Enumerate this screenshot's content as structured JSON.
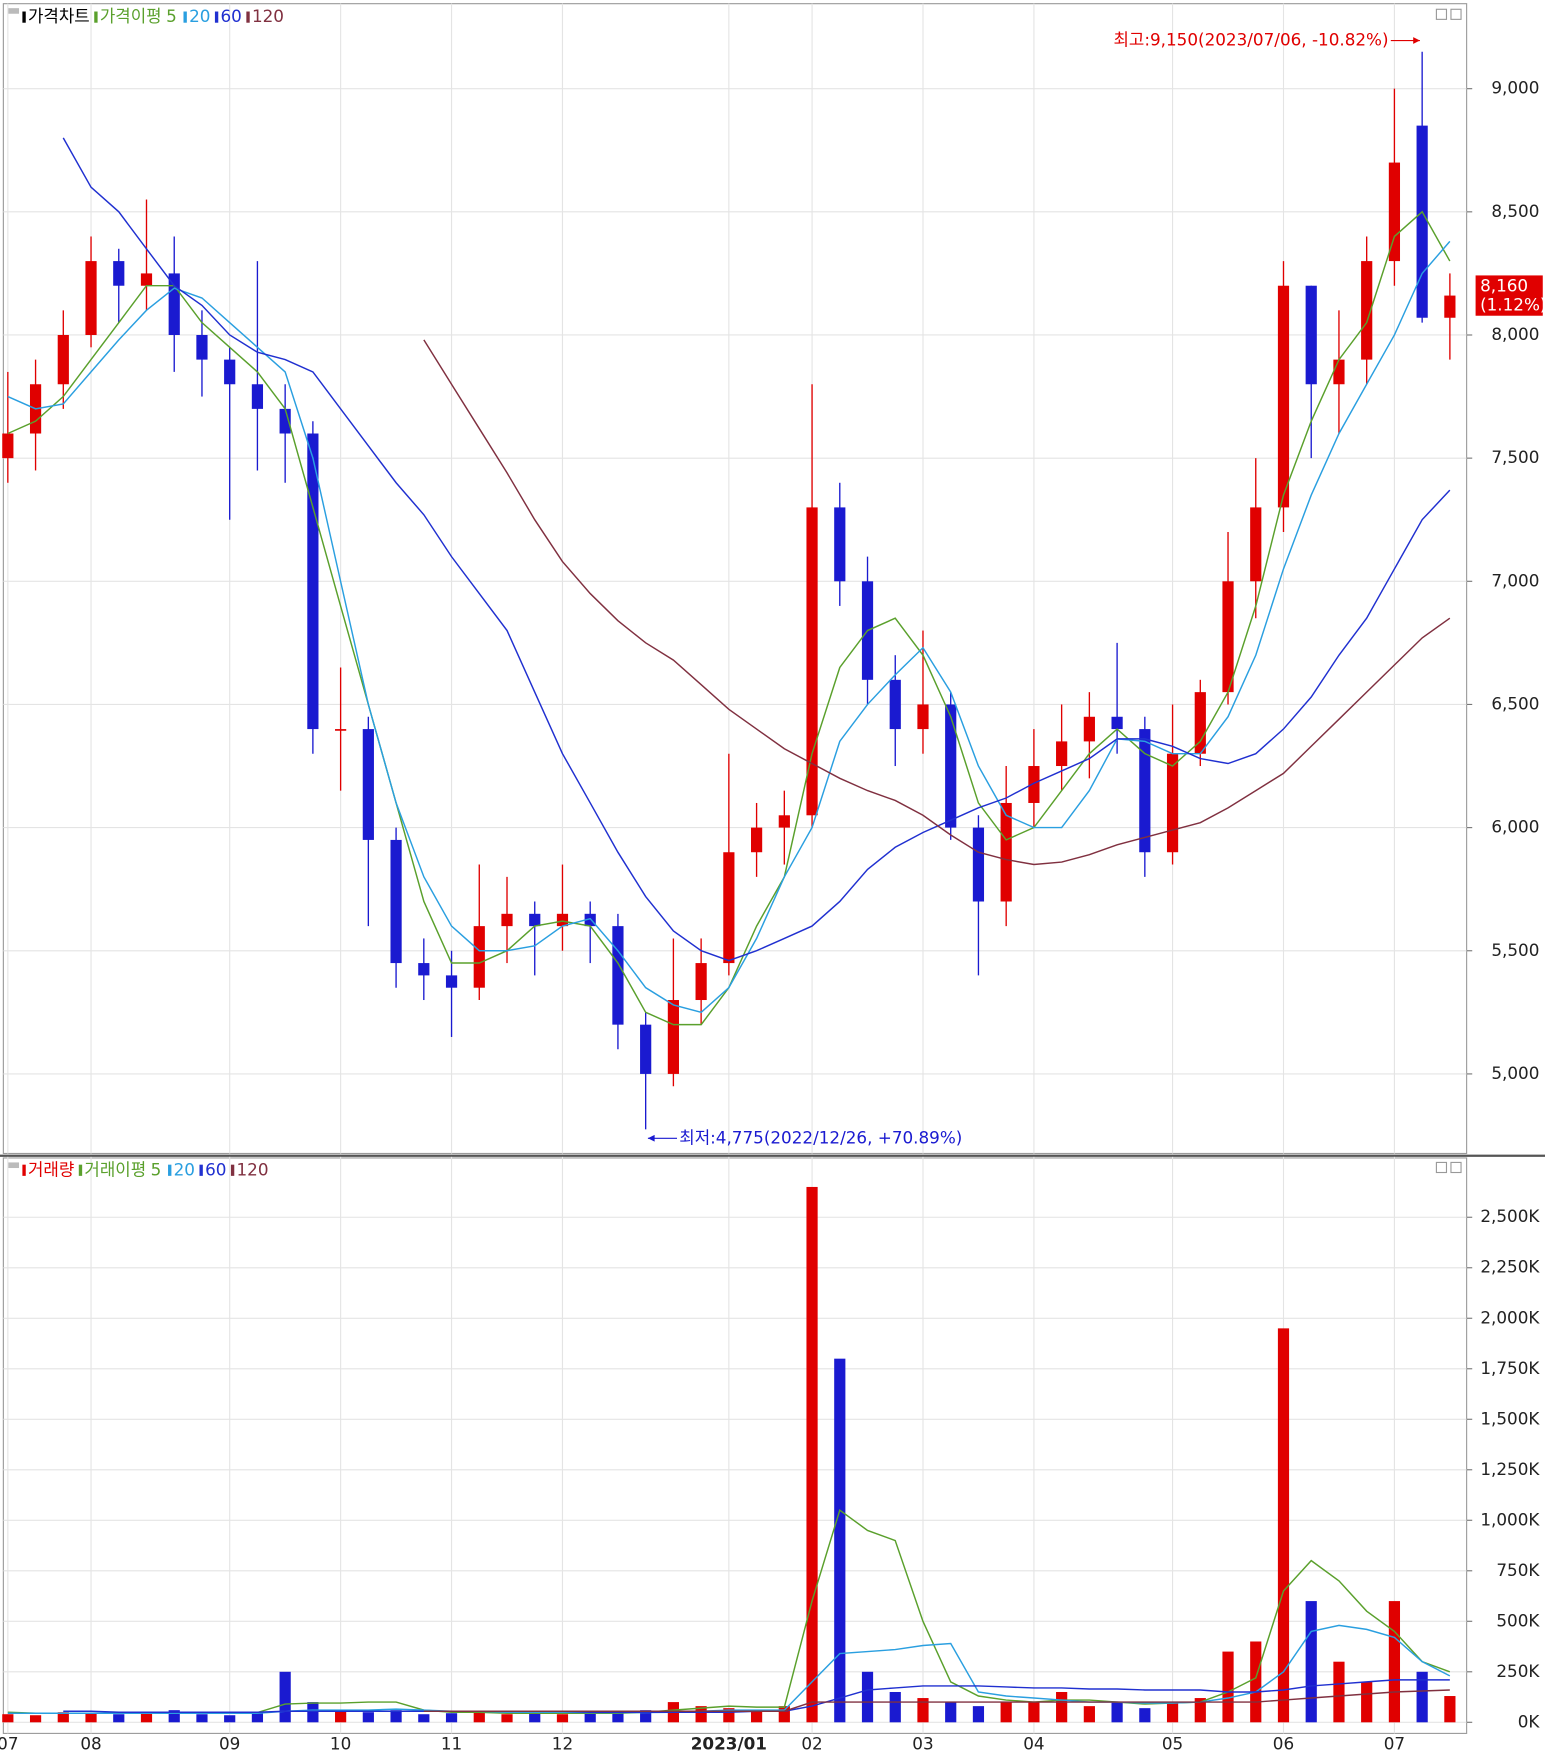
{
  "chart_data": [
    {
      "type": "candlestick",
      "legend_title": "가격차트",
      "ma_label": "가격이평",
      "up_color": "#e00000",
      "down_color": "#1a1ad0",
      "ylim": [
        4677,
        9336
      ],
      "yticks": [
        {
          "value": 5000,
          "label": "5,000"
        },
        {
          "value": 5500,
          "label": "5,500"
        },
        {
          "value": 6000,
          "label": "6,000"
        },
        {
          "value": 6500,
          "label": "6,500"
        },
        {
          "value": 7000,
          "label": "7,000"
        },
        {
          "value": 7500,
          "label": "7,500"
        },
        {
          "value": 8000,
          "label": "8,000"
        },
        {
          "value": 8500,
          "label": "8,500"
        },
        {
          "value": 9000,
          "label": "9,000"
        }
      ],
      "grid": true,
      "ohlc": [
        [
          7500,
          7850,
          7400,
          7600
        ],
        [
          7600,
          7900,
          7450,
          7800
        ],
        [
          7800,
          8100,
          7700,
          8000
        ],
        [
          8000,
          8400,
          7950,
          8300
        ],
        [
          8300,
          8350,
          8050,
          8200
        ],
        [
          8200,
          8550,
          8100,
          8250
        ],
        [
          8250,
          8400,
          7850,
          8000
        ],
        [
          8000,
          8100,
          7750,
          7900
        ],
        [
          7900,
          7950,
          7250,
          7800
        ],
        [
          7800,
          8300,
          7450,
          7700
        ],
        [
          7700,
          7800,
          7400,
          7600
        ],
        [
          7600,
          7650,
          6300,
          6400
        ],
        [
          6400,
          6650,
          6150,
          6400
        ],
        [
          6400,
          6450,
          5600,
          5950
        ],
        [
          5950,
          6000,
          5350,
          5450
        ],
        [
          5450,
          5550,
          5300,
          5400
        ],
        [
          5400,
          5500,
          5150,
          5350
        ],
        [
          5350,
          5850,
          5300,
          5600
        ],
        [
          5600,
          5800,
          5450,
          5650
        ],
        [
          5650,
          5700,
          5400,
          5600
        ],
        [
          5600,
          5850,
          5500,
          5650
        ],
        [
          5650,
          5700,
          5450,
          5600
        ],
        [
          5600,
          5650,
          5100,
          5200
        ],
        [
          5200,
          5250,
          4775,
          5000
        ],
        [
          5000,
          5550,
          4950,
          5300
        ],
        [
          5300,
          5550,
          5200,
          5450
        ],
        [
          5450,
          6300,
          5400,
          5900
        ],
        [
          5900,
          6100,
          5800,
          6000
        ],
        [
          6000,
          6150,
          5850,
          6050
        ],
        [
          6050,
          7800,
          6000,
          7300
        ],
        [
          7300,
          7400,
          6900,
          7000
        ],
        [
          7000,
          7100,
          6500,
          6600
        ],
        [
          6600,
          6700,
          6250,
          6400
        ],
        [
          6400,
          6800,
          6300,
          6500
        ],
        [
          6500,
          6550,
          5950,
          6000
        ],
        [
          6000,
          6050,
          5400,
          5700
        ],
        [
          5700,
          6250,
          5600,
          6100
        ],
        [
          6100,
          6400,
          6000,
          6250
        ],
        [
          6250,
          6500,
          6150,
          6350
        ],
        [
          6350,
          6550,
          6200,
          6450
        ],
        [
          6450,
          6750,
          6300,
          6400
        ],
        [
          6400,
          6450,
          5800,
          5900
        ],
        [
          5900,
          6500,
          5850,
          6300
        ],
        [
          6300,
          6600,
          6250,
          6550
        ],
        [
          6550,
          7200,
          6500,
          7000
        ],
        [
          7000,
          7500,
          6850,
          7300
        ],
        [
          7300,
          8300,
          7200,
          8200
        ],
        [
          8200,
          8200,
          7500,
          7800
        ],
        [
          7800,
          8100,
          7600,
          7900
        ],
        [
          7900,
          8400,
          7800,
          8300
        ],
        [
          8300,
          9000,
          8200,
          8700
        ],
        [
          8850,
          9150,
          8050,
          8070
        ],
        [
          8070,
          8250,
          7900,
          8160
        ]
      ],
      "series": [
        {
          "name": "5",
          "color": "#5aa02c",
          "values": [
            7600,
            7650,
            7750,
            7900,
            8050,
            8200,
            8200,
            8050,
            7950,
            7850,
            7700,
            7300,
            6900,
            6500,
            6100,
            5700,
            5450,
            5450,
            5500,
            5600,
            5620,
            5600,
            5450,
            5250,
            5200,
            5200,
            5350,
            5600,
            5800,
            6300,
            6650,
            6800,
            6850,
            6700,
            6450,
            6100,
            5950,
            6000,
            6150,
            6300,
            6400,
            6300,
            6250,
            6350,
            6550,
            6900,
            7350,
            7650,
            7900,
            8050,
            8400,
            8500,
            8300
          ]
        },
        {
          "name": "20",
          "color": "#2a9fe0",
          "values": [
            7750,
            7700,
            7720,
            7850,
            7980,
            8100,
            8190,
            8150,
            8050,
            7950,
            7850,
            7500,
            7000,
            6500,
            6100,
            5800,
            5600,
            5500,
            5500,
            5520,
            5600,
            5630,
            5500,
            5350,
            5280,
            5250,
            5350,
            5550,
            5800,
            6000,
            6350,
            6500,
            6620,
            6730,
            6550,
            6250,
            6050,
            6000,
            6000,
            6150,
            6360,
            6350,
            6300,
            6300,
            6450,
            6700,
            7050,
            7350,
            7600,
            7800,
            8000,
            8250,
            8380
          ]
        },
        {
          "name": "60",
          "color": "#2030d0",
          "values": [
            null,
            null,
            8800,
            8600,
            8500,
            8350,
            8200,
            8120,
            8000,
            7930,
            7900,
            7850,
            7700,
            7550,
            7400,
            7270,
            7100,
            6950,
            6800,
            6550,
            6300,
            6100,
            5900,
            5720,
            5580,
            5500,
            5460,
            5500,
            5550,
            5600,
            5700,
            5830,
            5920,
            5980,
            6030,
            6080,
            6120,
            6180,
            6230,
            6280,
            6360,
            6360,
            6330,
            6280,
            6260,
            6300,
            6400,
            6530,
            6700,
            6850,
            7050,
            7250,
            7370
          ]
        },
        {
          "name": "120",
          "color": "#803040",
          "values": [
            null,
            null,
            null,
            null,
            null,
            null,
            null,
            null,
            null,
            null,
            null,
            null,
            null,
            null,
            null,
            7980,
            7800,
            7620,
            7440,
            7250,
            7080,
            6950,
            6840,
            6750,
            6680,
            6580,
            6480,
            6400,
            6320,
            6260,
            6200,
            6150,
            6110,
            6050,
            5970,
            5900,
            5870,
            5850,
            5860,
            5890,
            5930,
            5960,
            5990,
            6020,
            6080,
            6150,
            6220,
            6330,
            6440,
            6550,
            6660,
            6770,
            6850
          ]
        }
      ],
      "annotations": {
        "high": "최고:9,150(2023/07/06, -10.82%)",
        "low": "최저:4,775(2022/12/26, +70.89%)"
      },
      "last_label": "8,160",
      "last_change": "(1.12%)"
    },
    {
      "type": "bar",
      "legend_title": "거래량",
      "legend_color": "#e00000",
      "ma_label": "거래이평",
      "ylim": [
        -55,
        2788
      ],
      "yticks": [
        {
          "value": 0,
          "label": "0K"
        },
        {
          "value": 250,
          "label": "250K"
        },
        {
          "value": 500,
          "label": "500K"
        },
        {
          "value": 750,
          "label": "750K"
        },
        {
          "value": 1000,
          "label": "1,000K"
        },
        {
          "value": 1250,
          "label": "1,250K"
        },
        {
          "value": 1500,
          "label": "1,500K"
        },
        {
          "value": 1750,
          "label": "1,750K"
        },
        {
          "value": 2000,
          "label": "2,000K"
        },
        {
          "value": 2250,
          "label": "2,250K"
        },
        {
          "value": 2500,
          "label": "2,500K"
        }
      ],
      "grid": true,
      "categories": [
        "07",
        null,
        null,
        "08",
        null,
        null,
        null,
        null,
        "09",
        null,
        null,
        null,
        "10",
        null,
        null,
        null,
        "11",
        null,
        null,
        null,
        "12",
        null,
        null,
        null,
        null,
        null,
        "2023/01",
        null,
        null,
        "02",
        null,
        null,
        null,
        "03",
        null,
        null,
        null,
        "04",
        null,
        null,
        null,
        null,
        "05",
        null,
        null,
        null,
        "06",
        null,
        null,
        null,
        "07",
        null,
        null
      ],
      "values": [
        40,
        35,
        50,
        45,
        40,
        45,
        60,
        40,
        35,
        50,
        250,
        100,
        60,
        50,
        60,
        40,
        45,
        50,
        40,
        45,
        40,
        50,
        45,
        60,
        100,
        80,
        70,
        60,
        80,
        2650,
        1800,
        250,
        150,
        120,
        100,
        80,
        100,
        100,
        150,
        80,
        100,
        70,
        100,
        120,
        350,
        400,
        1950,
        600,
        300,
        200,
        600,
        250,
        130
      ],
      "series": [
        {
          "name": "5",
          "color": "#5aa02c",
          "values": [
            50,
            45,
            45,
            45,
            45,
            45,
            48,
            45,
            45,
            48,
            90,
            95,
            95,
            100,
            100,
            60,
            50,
            50,
            45,
            45,
            45,
            45,
            45,
            50,
            60,
            70,
            80,
            75,
            75,
            600,
            1050,
            950,
            900,
            500,
            200,
            130,
            110,
            100,
            110,
            110,
            100,
            90,
            95,
            100,
            150,
            220,
            650,
            800,
            700,
            550,
            450,
            300,
            250
          ]
        },
        {
          "name": "20",
          "color": "#2a9fe0",
          "values": [
            45,
            45,
            45,
            45,
            45,
            45,
            45,
            45,
            45,
            45,
            55,
            60,
            60,
            60,
            65,
            60,
            55,
            55,
            50,
            50,
            50,
            48,
            48,
            48,
            50,
            55,
            60,
            60,
            60,
            200,
            340,
            350,
            360,
            380,
            390,
            150,
            130,
            120,
            110,
            100,
            100,
            95,
            95,
            100,
            120,
            150,
            250,
            450,
            480,
            460,
            420,
            300,
            230
          ]
        },
        {
          "name": "60",
          "color": "#2030d0",
          "values": [
            null,
            null,
            55,
            55,
            50,
            50,
            50,
            50,
            50,
            50,
            55,
            55,
            55,
            55,
            55,
            55,
            55,
            55,
            55,
            55,
            55,
            50,
            50,
            50,
            50,
            50,
            50,
            55,
            55,
            80,
            120,
            160,
            170,
            180,
            180,
            180,
            175,
            170,
            170,
            165,
            165,
            160,
            160,
            160,
            150,
            150,
            160,
            180,
            190,
            200,
            210,
            210,
            210
          ]
        },
        {
          "name": "120",
          "color": "#803040",
          "values": [
            null,
            null,
            null,
            null,
            null,
            null,
            null,
            null,
            null,
            null,
            null,
            null,
            null,
            null,
            null,
            55,
            55,
            55,
            55,
            55,
            55,
            55,
            55,
            55,
            55,
            55,
            55,
            55,
            55,
            100,
            100,
            100,
            100,
            100,
            100,
            100,
            100,
            100,
            100,
            100,
            100,
            100,
            100,
            100,
            100,
            100,
            110,
            120,
            130,
            140,
            150,
            155,
            160
          ]
        }
      ]
    }
  ]
}
